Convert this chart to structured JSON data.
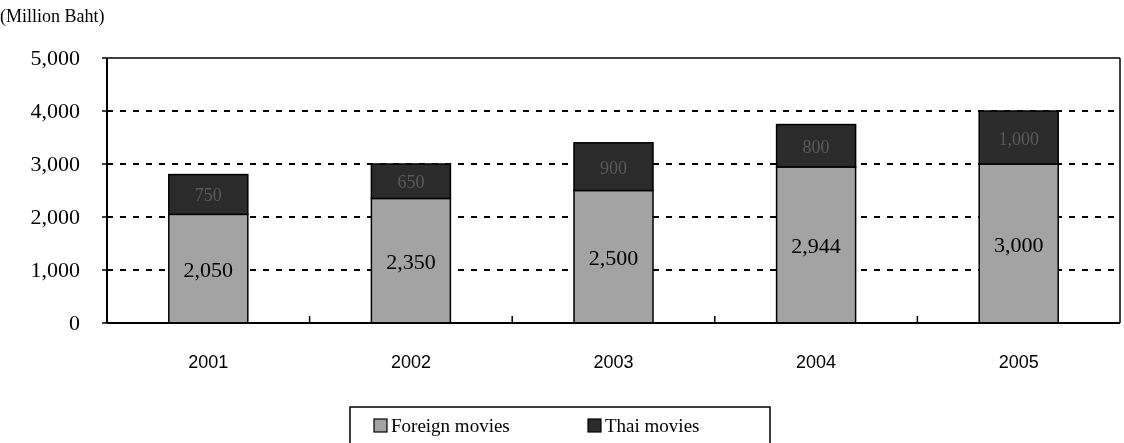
{
  "chart_data": {
    "type": "bar",
    "stacked": true,
    "ylabel": "(Million Baht)",
    "categories": [
      "2001",
      "2002",
      "2003",
      "2004",
      "2005"
    ],
    "series": [
      {
        "name": "Foreign movies",
        "color": "#a3a3a3",
        "values": [
          2050,
          2350,
          2500,
          2944,
          3000
        ],
        "value_labels": [
          "2,050",
          "2,350",
          "2,500",
          "2,944",
          "3,000"
        ]
      },
      {
        "name": "Thai movies",
        "color": "#2b2b2b",
        "values": [
          750,
          650,
          900,
          800,
          1000
        ],
        "value_labels": [
          "750",
          "650",
          "900",
          "800",
          "1,000"
        ]
      }
    ],
    "ylim": [
      0,
      5000
    ],
    "yticks": [
      {
        "value": 0,
        "label": "0"
      },
      {
        "value": 1000,
        "label": "1,000"
      },
      {
        "value": 2000,
        "label": "2,000"
      },
      {
        "value": 3000,
        "label": "3,000"
      },
      {
        "value": 4000,
        "label": "4,000"
      },
      {
        "value": 5000,
        "label": "5,000"
      }
    ],
    "grid": "y",
    "legend": "bottom"
  }
}
